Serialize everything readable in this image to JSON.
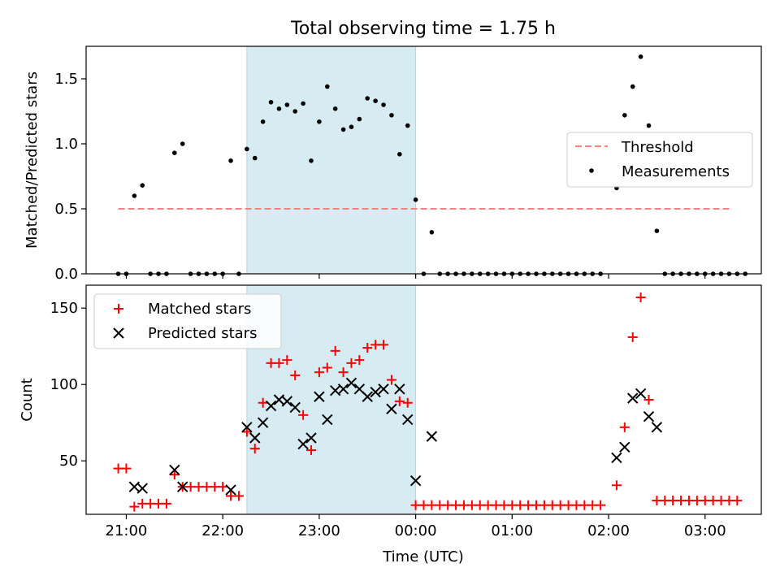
{
  "chart_data": [
    {
      "type": "scatter",
      "title": "Total observing time = 1.75 h",
      "xlabel": "",
      "ylabel": "Matched/Predicted stars",
      "xlim": [
        "20:35",
        "03:35"
      ],
      "ylim": [
        0,
        1.75
      ],
      "yticks": [
        0.0,
        0.5,
        1.0,
        1.5
      ],
      "ytick_labels": [
        "0.0",
        "0.5",
        "1.0",
        "1.5"
      ],
      "shaded_interval": [
        "22:15",
        "00:00"
      ],
      "grid": false,
      "legend_position": "center-right",
      "threshold": {
        "name": "Threshold",
        "value": 0.5,
        "x_range": [
          "20:55",
          "03:15"
        ],
        "color": "#ff7f7f",
        "style": "dashed"
      },
      "series": [
        {
          "name": "Measurements",
          "marker": "dot",
          "color": "#000000",
          "points": [
            [
              "20:55",
              0
            ],
            [
              "21:00",
              0
            ],
            [
              "21:05",
              0.6
            ],
            [
              "21:10",
              0.68
            ],
            [
              "21:15",
              0
            ],
            [
              "21:20",
              0
            ],
            [
              "21:25",
              0
            ],
            [
              "21:30",
              0.93
            ],
            [
              "21:35",
              1.0
            ],
            [
              "21:40",
              0
            ],
            [
              "21:45",
              0
            ],
            [
              "21:50",
              0
            ],
            [
              "21:55",
              0
            ],
            [
              "22:00",
              0
            ],
            [
              "22:05",
              0.87
            ],
            [
              "22:10",
              0
            ],
            [
              "22:15",
              0.96
            ],
            [
              "22:20",
              0.89
            ],
            [
              "22:25",
              1.17
            ],
            [
              "22:30",
              1.32
            ],
            [
              "22:35",
              1.27
            ],
            [
              "22:40",
              1.3
            ],
            [
              "22:45",
              1.25
            ],
            [
              "22:50",
              1.31
            ],
            [
              "22:55",
              0.87
            ],
            [
              "23:00",
              1.17
            ],
            [
              "23:05",
              1.44
            ],
            [
              "23:10",
              1.27
            ],
            [
              "23:15",
              1.11
            ],
            [
              "23:20",
              1.13
            ],
            [
              "23:25",
              1.19
            ],
            [
              "23:30",
              1.35
            ],
            [
              "23:35",
              1.33
            ],
            [
              "23:40",
              1.3
            ],
            [
              "23:45",
              1.22
            ],
            [
              "23:50",
              0.92
            ],
            [
              "23:55",
              1.14
            ],
            [
              "00:00",
              0.57
            ],
            [
              "00:05",
              0
            ],
            [
              "00:10",
              0.32
            ],
            [
              "00:15",
              0
            ],
            [
              "00:20",
              0
            ],
            [
              "00:25",
              0
            ],
            [
              "00:30",
              0
            ],
            [
              "00:35",
              0
            ],
            [
              "00:40",
              0
            ],
            [
              "00:45",
              0
            ],
            [
              "00:50",
              0
            ],
            [
              "00:55",
              0
            ],
            [
              "01:00",
              0
            ],
            [
              "01:05",
              0
            ],
            [
              "01:10",
              0
            ],
            [
              "01:15",
              0
            ],
            [
              "01:20",
              0
            ],
            [
              "01:25",
              0
            ],
            [
              "01:30",
              0
            ],
            [
              "01:35",
              0
            ],
            [
              "01:40",
              0
            ],
            [
              "01:45",
              0
            ],
            [
              "01:50",
              0
            ],
            [
              "01:55",
              0
            ],
            [
              "02:05",
              0.66
            ],
            [
              "02:10",
              1.22
            ],
            [
              "02:15",
              1.44
            ],
            [
              "02:20",
              1.67
            ],
            [
              "02:25",
              1.14
            ],
            [
              "02:30",
              0.33
            ],
            [
              "02:35",
              0
            ],
            [
              "02:40",
              0
            ],
            [
              "02:45",
              0
            ],
            [
              "02:50",
              0
            ],
            [
              "02:55",
              0
            ],
            [
              "03:00",
              0
            ],
            [
              "03:05",
              0
            ],
            [
              "03:10",
              0
            ],
            [
              "03:15",
              0
            ],
            [
              "03:20",
              0
            ],
            [
              "03:25",
              0
            ]
          ]
        }
      ]
    },
    {
      "type": "scatter",
      "title": "",
      "xlabel": "Time (UTC)",
      "ylabel": "Count",
      "xlim": [
        "20:35",
        "03:35"
      ],
      "ylim": [
        15,
        165
      ],
      "yticks": [
        50,
        100,
        150
      ],
      "ytick_labels": [
        "50",
        "100",
        "150"
      ],
      "xticks": [
        "21:00",
        "22:00",
        "23:00",
        "00:00",
        "01:00",
        "02:00",
        "03:00"
      ],
      "shaded_interval": [
        "22:15",
        "00:00"
      ],
      "grid": false,
      "legend_position": "top-left",
      "series": [
        {
          "name": "Matched stars",
          "marker": "plus",
          "color": "#ff0000",
          "points": [
            [
              "20:55",
              45
            ],
            [
              "21:00",
              45
            ],
            [
              "21:05",
              20
            ],
            [
              "21:10",
              22
            ],
            [
              "21:15",
              22
            ],
            [
              "21:20",
              22
            ],
            [
              "21:25",
              22
            ],
            [
              "21:30",
              41
            ],
            [
              "21:35",
              33
            ],
            [
              "21:40",
              33
            ],
            [
              "21:45",
              33
            ],
            [
              "21:50",
              33
            ],
            [
              "21:55",
              33
            ],
            [
              "22:00",
              33
            ],
            [
              "22:05",
              27
            ],
            [
              "22:10",
              27
            ],
            [
              "22:15",
              69
            ],
            [
              "22:20",
              58
            ],
            [
              "22:25",
              88
            ],
            [
              "22:30",
              114
            ],
            [
              "22:35",
              114
            ],
            [
              "22:40",
              116
            ],
            [
              "22:45",
              106
            ],
            [
              "22:50",
              80
            ],
            [
              "22:55",
              57
            ],
            [
              "23:00",
              108
            ],
            [
              "23:05",
              111
            ],
            [
              "23:10",
              122
            ],
            [
              "23:15",
              108
            ],
            [
              "23:20",
              114
            ],
            [
              "23:25",
              116
            ],
            [
              "23:30",
              124
            ],
            [
              "23:35",
              126
            ],
            [
              "23:40",
              126
            ],
            [
              "23:45",
              103
            ],
            [
              "23:50",
              89
            ],
            [
              "23:55",
              88
            ],
            [
              "00:00",
              21
            ],
            [
              "00:05",
              21
            ],
            [
              "00:10",
              21
            ],
            [
              "00:15",
              21
            ],
            [
              "00:20",
              21
            ],
            [
              "00:25",
              21
            ],
            [
              "00:30",
              21
            ],
            [
              "00:35",
              21
            ],
            [
              "00:40",
              21
            ],
            [
              "00:45",
              21
            ],
            [
              "00:50",
              21
            ],
            [
              "00:55",
              21
            ],
            [
              "01:00",
              21
            ],
            [
              "01:05",
              21
            ],
            [
              "01:10",
              21
            ],
            [
              "01:15",
              21
            ],
            [
              "01:20",
              21
            ],
            [
              "01:25",
              21
            ],
            [
              "01:30",
              21
            ],
            [
              "01:35",
              21
            ],
            [
              "01:40",
              21
            ],
            [
              "01:45",
              21
            ],
            [
              "01:50",
              21
            ],
            [
              "01:55",
              21
            ],
            [
              "02:05",
              34
            ],
            [
              "02:10",
              72
            ],
            [
              "02:15",
              131
            ],
            [
              "02:20",
              157
            ],
            [
              "02:25",
              90
            ],
            [
              "02:30",
              24
            ],
            [
              "02:35",
              24
            ],
            [
              "02:40",
              24
            ],
            [
              "02:45",
              24
            ],
            [
              "02:50",
              24
            ],
            [
              "02:55",
              24
            ],
            [
              "03:00",
              24
            ],
            [
              "03:05",
              24
            ],
            [
              "03:10",
              24
            ],
            [
              "03:15",
              24
            ],
            [
              "03:20",
              24
            ]
          ]
        },
        {
          "name": "Predicted stars",
          "marker": "x",
          "color": "#000000",
          "points": [
            [
              "21:05",
              33
            ],
            [
              "21:10",
              32
            ],
            [
              "21:30",
              44
            ],
            [
              "21:35",
              33
            ],
            [
              "22:05",
              31
            ],
            [
              "22:15",
              72
            ],
            [
              "22:20",
              65
            ],
            [
              "22:25",
              75
            ],
            [
              "22:30",
              86
            ],
            [
              "22:35",
              90
            ],
            [
              "22:40",
              89
            ],
            [
              "22:45",
              85
            ],
            [
              "22:50",
              61
            ],
            [
              "22:55",
              65
            ],
            [
              "23:00",
              92
            ],
            [
              "23:05",
              77
            ],
            [
              "23:10",
              96
            ],
            [
              "23:15",
              97
            ],
            [
              "23:20",
              101
            ],
            [
              "23:25",
              97
            ],
            [
              "23:30",
              92
            ],
            [
              "23:35",
              95
            ],
            [
              "23:40",
              97
            ],
            [
              "23:45",
              84
            ],
            [
              "23:50",
              97
            ],
            [
              "23:55",
              77
            ],
            [
              "00:00",
              37
            ],
            [
              "00:10",
              66
            ],
            [
              "02:05",
              52
            ],
            [
              "02:10",
              59
            ],
            [
              "02:15",
              91
            ],
            [
              "02:20",
              94
            ],
            [
              "02:25",
              79
            ],
            [
              "02:30",
              72
            ]
          ]
        }
      ]
    }
  ],
  "colors": {
    "shade": "#add8e6",
    "matched": "#ff0000",
    "predicted": "#000000",
    "threshold": "#ff7f7f"
  }
}
